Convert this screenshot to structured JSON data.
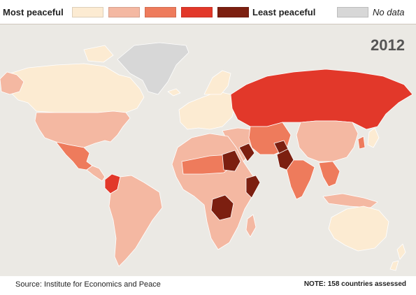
{
  "legend": {
    "most_label": "Most peaceful",
    "least_label": "Least peaceful",
    "nodata_label": "No data",
    "colors": [
      "#fcebd2",
      "#f4b8a2",
      "#ee7b5c",
      "#e2382a",
      "#7c1f10"
    ],
    "nodata_color": "#d7d7d7"
  },
  "map": {
    "year": "2012",
    "ocean_color": "#ebe9e4",
    "regions": [
      {
        "name": "Greenland",
        "level": "nodata"
      },
      {
        "name": "Canada",
        "level": 1
      },
      {
        "name": "United States",
        "level": 2
      },
      {
        "name": "Mexico",
        "level": 3
      },
      {
        "name": "Colombia",
        "level": 4
      },
      {
        "name": "South America",
        "level": 2
      },
      {
        "name": "Western Europe",
        "level": 1
      },
      {
        "name": "Russia",
        "level": 4
      },
      {
        "name": "China",
        "level": 2
      },
      {
        "name": "India",
        "level": 3
      },
      {
        "name": "Pakistan",
        "level": 5
      },
      {
        "name": "Afghanistan",
        "level": 5
      },
      {
        "name": "Iraq",
        "level": 5
      },
      {
        "name": "Somalia",
        "level": 5
      },
      {
        "name": "Sudan",
        "level": 5
      },
      {
        "name": "DR Congo",
        "level": 5
      },
      {
        "name": "Australia",
        "level": 1
      },
      {
        "name": "New Zealand",
        "level": 1
      }
    ]
  },
  "footer": {
    "source": "Source: Institute for Economics and Peace",
    "note": "NOTE: 158 countries assessed"
  }
}
